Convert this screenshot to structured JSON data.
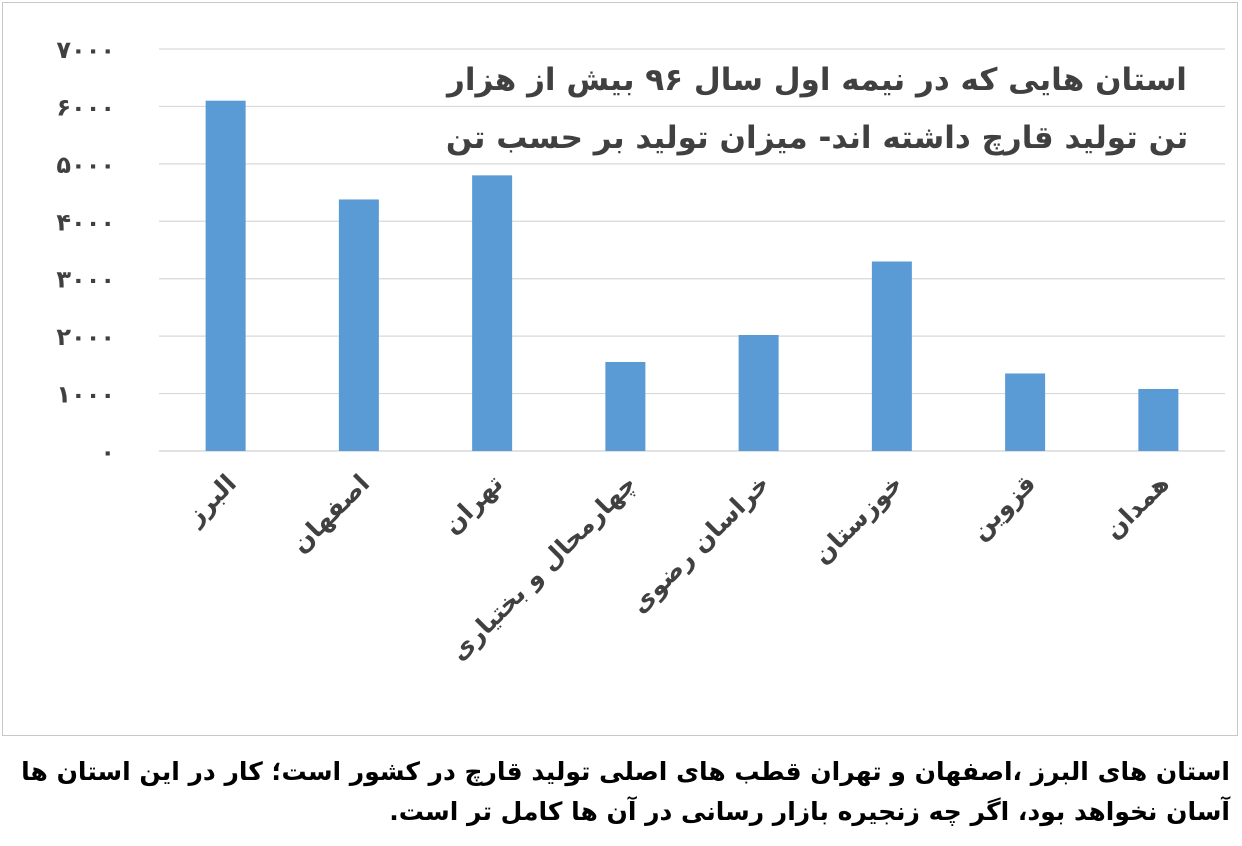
{
  "chart_data": {
    "type": "bar",
    "title": "استان هایی که در نیمه اول سال ۹۶ بیش از هزار تن تولید قارچ داشته اند- میزان تولید بر حسب تن",
    "categories": [
      "البرز",
      "اصفهان",
      "تهران",
      "چهارمحال و بختیاری",
      "خراسان رضوی",
      "خوزستان",
      "قزوین",
      "همدان"
    ],
    "values": [
      6100,
      4380,
      4800,
      1550,
      2020,
      3300,
      1350,
      1080
    ],
    "ylim": [
      0,
      7000
    ],
    "yticks": [
      0,
      1000,
      2000,
      3000,
      4000,
      5000,
      6000,
      7000
    ],
    "ytick_labels": [
      "۰",
      "۱۰۰۰",
      "۲۰۰۰",
      "۳۰۰۰",
      "۴۰۰۰",
      "۵۰۰۰",
      "۶۰۰۰",
      "۷۰۰۰"
    ],
    "grid": true,
    "bar_color": "#5b9bd5",
    "grid_color": "#d9d9d9",
    "xlabel": "",
    "ylabel": ""
  },
  "caption": "استان های البرز ،اصفهان و تهران قطب های اصلی تولید قارچ در کشور است؛ کار در این استان ها آسان نخواهد بود، اگر چه زنجیره بازار رسانی در آن ها کامل تر است."
}
